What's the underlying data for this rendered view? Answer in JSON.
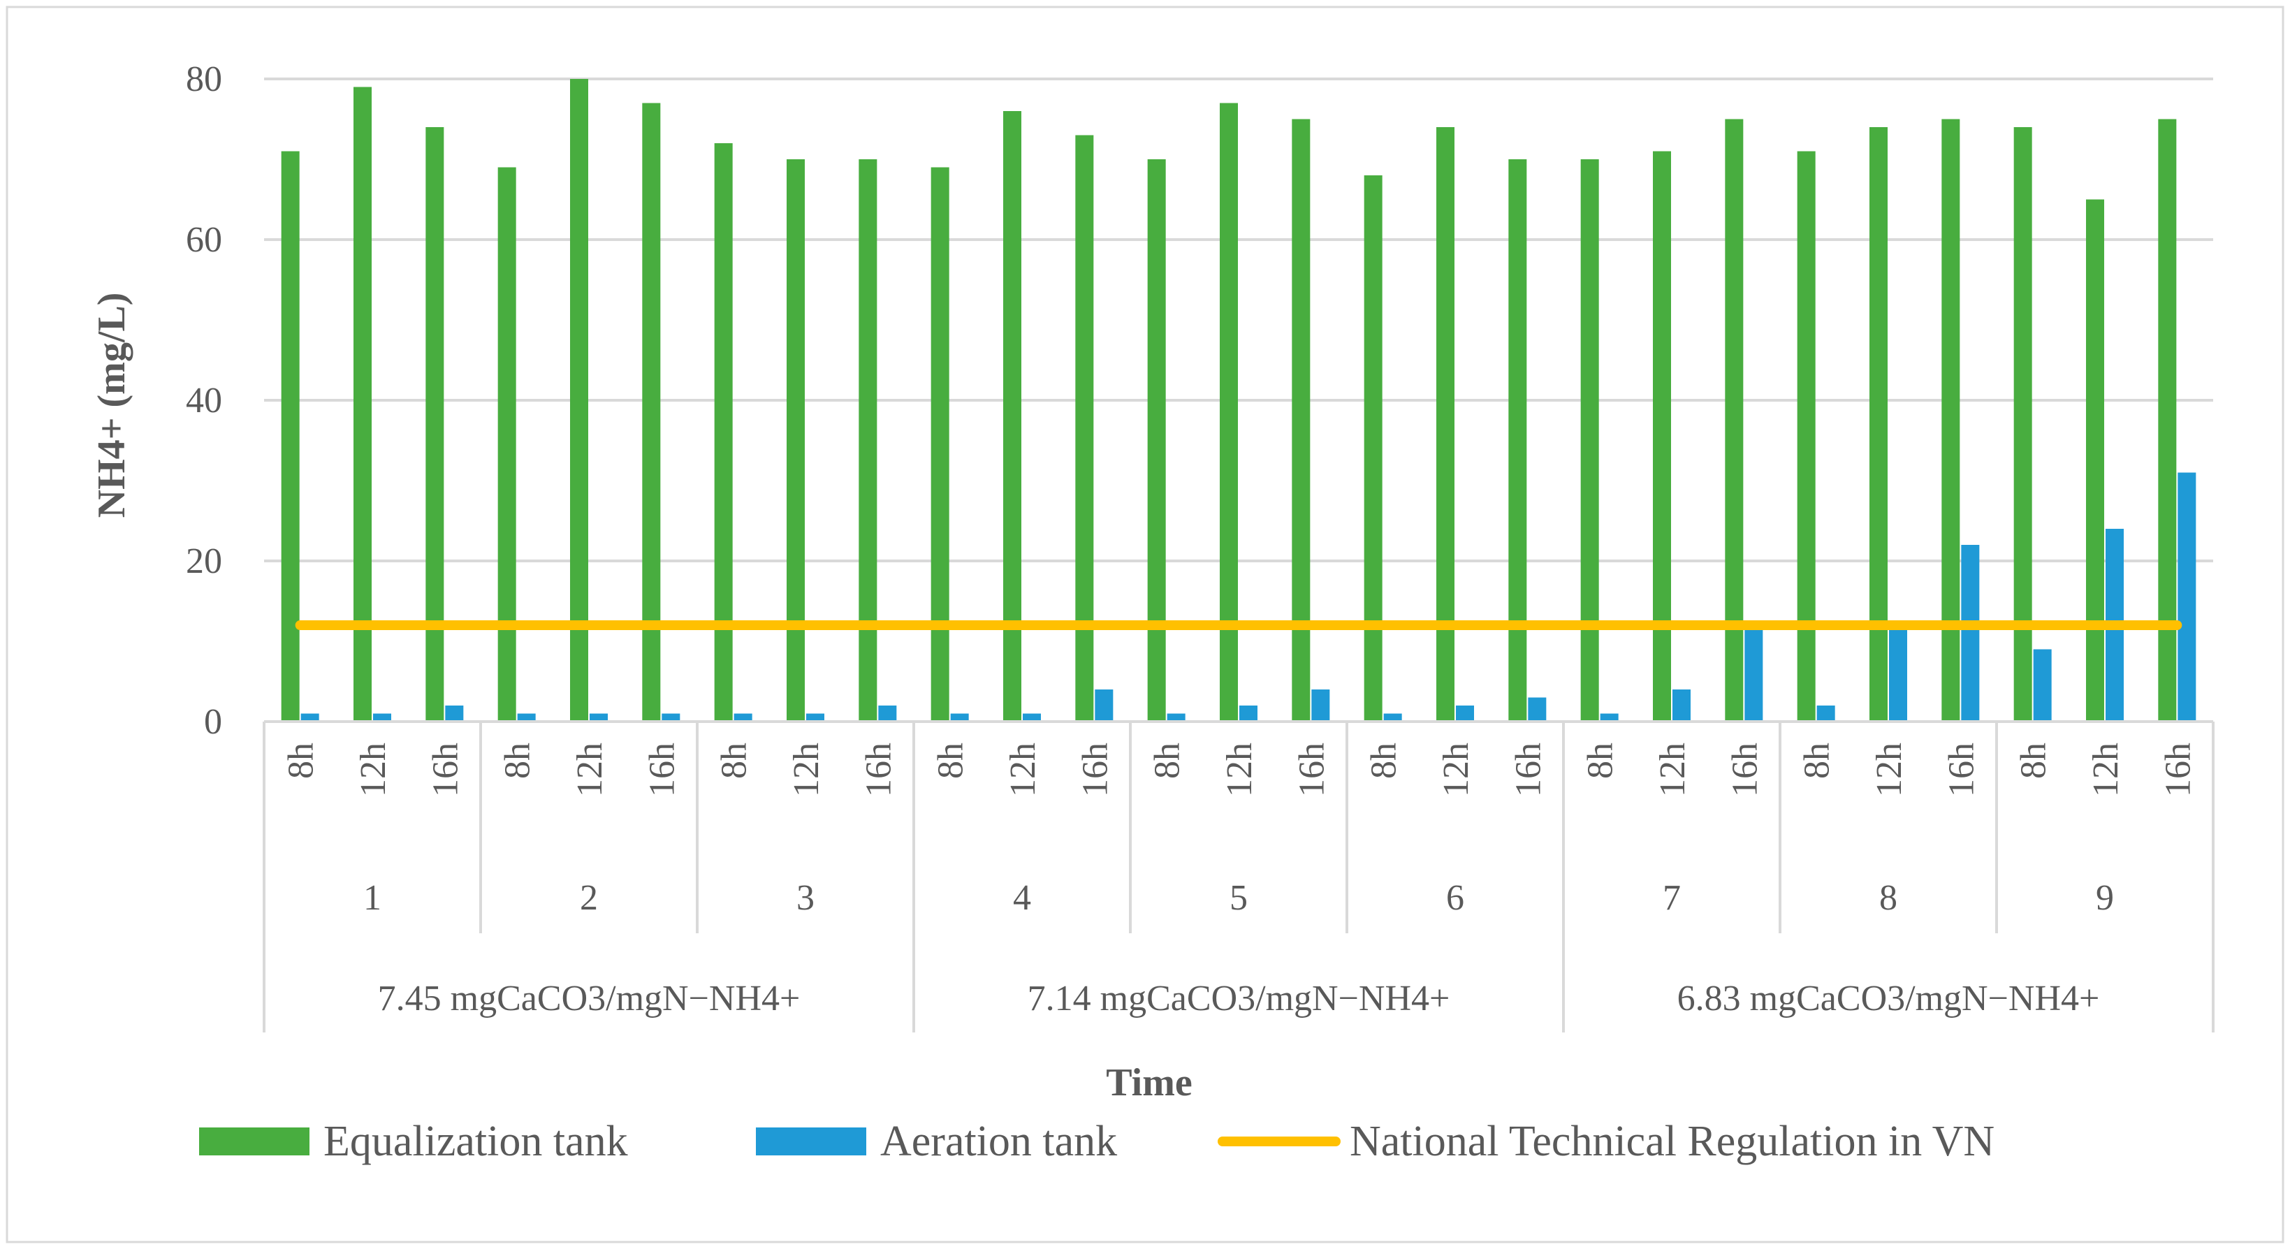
{
  "chart_data": {
    "type": "bar",
    "ylabel": "NH4+ (mg/L)",
    "xlabel": "Time",
    "ylim": [
      0,
      80
    ],
    "yticks": [
      "0",
      "20",
      "40",
      "60",
      "80"
    ],
    "grid": true,
    "legend_position": "bottom",
    "time_labels": [
      "8h",
      "12h",
      "16h"
    ],
    "days": [
      "1",
      "2",
      "3",
      "4",
      "5",
      "6",
      "7",
      "8",
      "9"
    ],
    "ratio_groups": [
      "7.45 mgCaCO3/mgN−NH4+",
      "7.14 mgCaCO3/mgN−NH4+",
      "6.83 mgCaCO3/mgN−NH4+"
    ],
    "series": [
      {
        "name": "Equalization tank",
        "kind": "bar",
        "color": "#48ad3f",
        "values": [
          71,
          79,
          74,
          69,
          80,
          77,
          72,
          70,
          70,
          69,
          76,
          73,
          70,
          77,
          75,
          68,
          74,
          70,
          70,
          71,
          75,
          71,
          74,
          75,
          74,
          65,
          75
        ]
      },
      {
        "name": "Aeration tank",
        "kind": "bar",
        "color": "#1f9ad6",
        "values": [
          1,
          1,
          2,
          1,
          1,
          1,
          1,
          1,
          2,
          1,
          1,
          4,
          1,
          2,
          4,
          1,
          2,
          3,
          1,
          4,
          12,
          2,
          12,
          22,
          9,
          24,
          31
        ]
      },
      {
        "name": "National Technical Regulation in VN",
        "kind": "line",
        "color": "#ffc000",
        "value": 12
      }
    ]
  }
}
